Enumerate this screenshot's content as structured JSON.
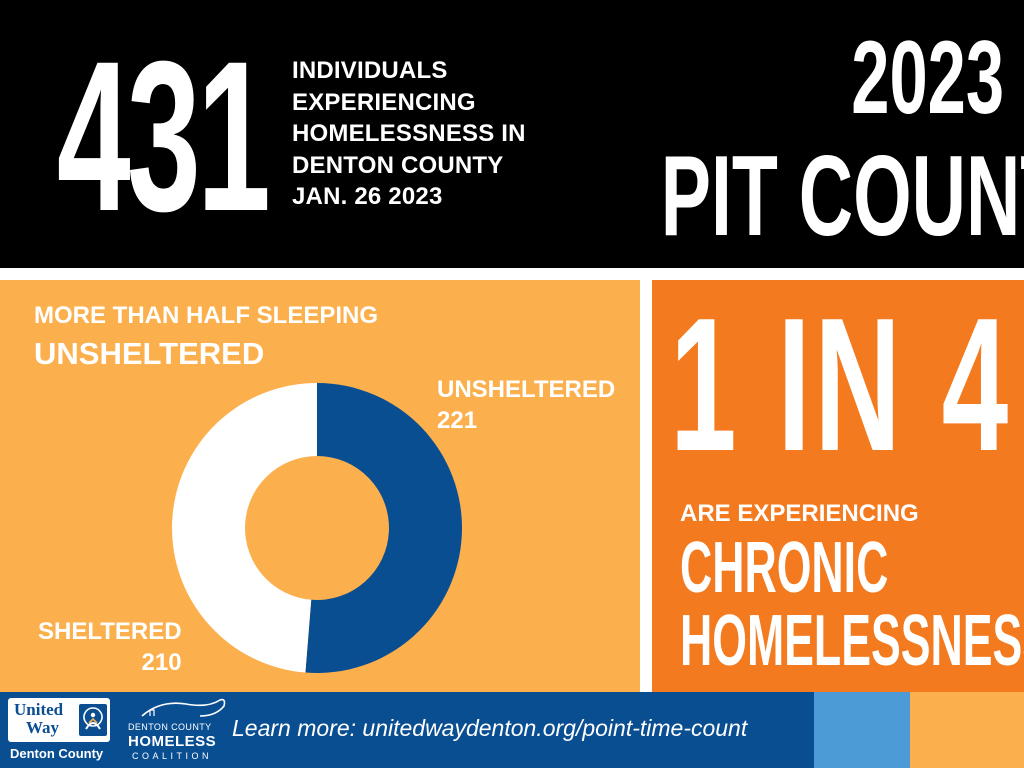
{
  "header": {
    "big_number": "431",
    "headline_lines": [
      "INDIVIDUALS",
      "EXPERIENCING",
      "HOMELESSNESS IN",
      "DENTON COUNTY",
      "JAN. 26 2023"
    ],
    "year": "2023",
    "label": "PIT COUNT"
  },
  "left_panel": {
    "subtitle": "MORE THAN HALF SLEEPING",
    "title": "UNSHELTERED"
  },
  "chart_data": {
    "type": "pie",
    "style": "donut",
    "title": "",
    "categories": [
      "UNSHELTERED",
      "SHELTERED"
    ],
    "values": [
      221,
      210
    ],
    "colors": [
      "#0A4E92",
      "#FFFFFF"
    ],
    "legend": "none",
    "data_labels": [
      {
        "category": "UNSHELTERED",
        "value": "221"
      },
      {
        "category": "SHELTERED",
        "value": "210"
      }
    ]
  },
  "right_panel": {
    "ratio": "1 IN 4",
    "subtitle": "ARE EXPERIENCING",
    "big_line1": "CHRONIC",
    "big_line2": "HOMELESSNESS"
  },
  "footer": {
    "uw_word1": "United",
    "uw_word2": "Way",
    "uw_county": "Denton County",
    "dchc_line1": "DENTON COUNTY",
    "dchc_line2": "HOMELESS",
    "dchc_line3": "COALITION",
    "link_text": "Learn more: unitedwaydenton.org/point-time-count"
  },
  "colors": {
    "black": "#000000",
    "light_orange": "#FBB04D",
    "orange": "#F37A1F",
    "blue": "#0A4E92",
    "light_blue": "#4C9BD6",
    "white": "#FFFFFF"
  },
  "icons": [
    "united-way-logo",
    "denton-county-homeless-coalition-logo"
  ]
}
